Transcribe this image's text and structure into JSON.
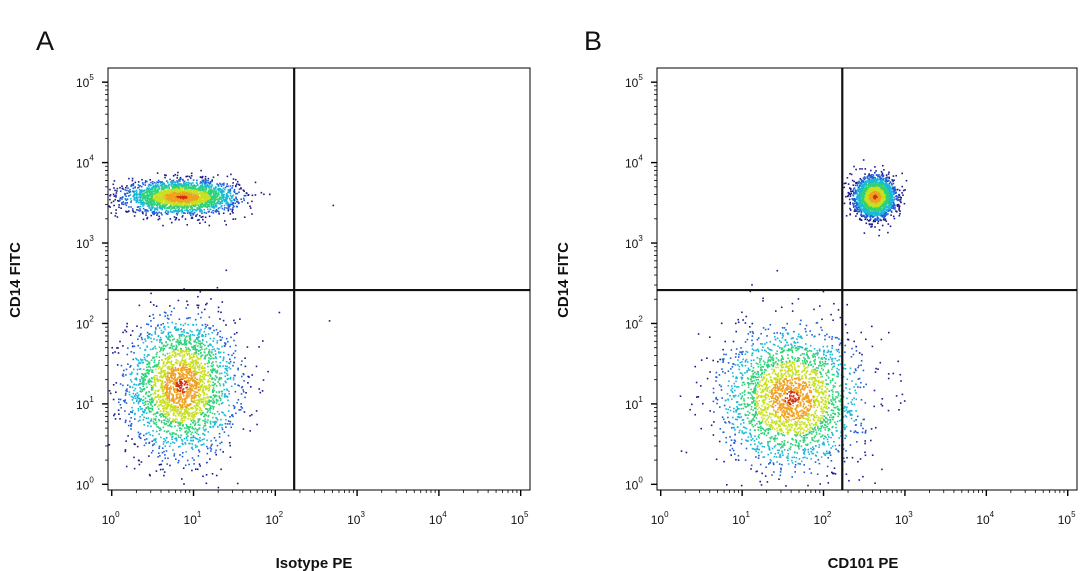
{
  "chart_data": [
    {
      "type": "scatter",
      "panel": "A",
      "xlabel": "Isotype PE",
      "ylabel": "CD14 FITC",
      "x_scale": "log",
      "y_scale": "log",
      "xlim": [
        0.9,
        130000
      ],
      "ylim": [
        0.85,
        150000
      ],
      "x_ticks": [
        {
          "base": "10",
          "exp": "0",
          "value": 1
        },
        {
          "base": "10",
          "exp": "1",
          "value": 10
        },
        {
          "base": "10",
          "exp": "2",
          "value": 100
        },
        {
          "base": "10",
          "exp": "3",
          "value": 1000
        },
        {
          "base": "10",
          "exp": "4",
          "value": 10000
        },
        {
          "base": "10",
          "exp": "5",
          "value": 100000
        }
      ],
      "y_ticks": [
        {
          "base": "10",
          "exp": "0",
          "value": 1
        },
        {
          "base": "10",
          "exp": "1",
          "value": 10
        },
        {
          "base": "10",
          "exp": "2",
          "value": 100
        },
        {
          "base": "10",
          "exp": "3",
          "value": 1000
        },
        {
          "base": "10",
          "exp": "4",
          "value": 10000
        },
        {
          "base": "10",
          "exp": "5",
          "value": 100000
        }
      ],
      "quadrant_gate": {
        "x": 170,
        "y": 260
      },
      "populations": [
        {
          "x_center": 7,
          "y_center": 17,
          "x_spread_decades": 0.33,
          "y_spread_decades": 0.42,
          "density": "high"
        },
        {
          "x_center": 7,
          "y_center": 3800,
          "x_spread_decades": 0.33,
          "y_spread_decades": 0.1,
          "density": "high"
        }
      ],
      "outliers": [
        {
          "x": 500,
          "y": 3000
        },
        {
          "x": 450,
          "y": 110
        }
      ]
    },
    {
      "type": "scatter",
      "panel": "B",
      "xlabel": "CD101 PE",
      "ylabel": "CD14 FITC",
      "x_scale": "log",
      "y_scale": "log",
      "xlim": [
        0.9,
        130000
      ],
      "ylim": [
        0.85,
        150000
      ],
      "x_ticks": [
        {
          "base": "10",
          "exp": "0",
          "value": 1
        },
        {
          "base": "10",
          "exp": "1",
          "value": 10
        },
        {
          "base": "10",
          "exp": "2",
          "value": 100
        },
        {
          "base": "10",
          "exp": "3",
          "value": 1000
        },
        {
          "base": "10",
          "exp": "4",
          "value": 10000
        },
        {
          "base": "10",
          "exp": "5",
          "value": 100000
        }
      ],
      "y_ticks": [
        {
          "base": "10",
          "exp": "0",
          "value": 1
        },
        {
          "base": "10",
          "exp": "1",
          "value": 10
        },
        {
          "base": "10",
          "exp": "2",
          "value": 100
        },
        {
          "base": "10",
          "exp": "3",
          "value": 1000
        },
        {
          "base": "10",
          "exp": "4",
          "value": 10000
        },
        {
          "base": "10",
          "exp": "5",
          "value": 100000
        }
      ],
      "quadrant_gate": {
        "x": 170,
        "y": 260
      },
      "populations": [
        {
          "x_center": 40,
          "y_center": 12,
          "x_spread_decades": 0.42,
          "y_spread_decades": 0.42,
          "density": "high"
        },
        {
          "x_center": 420,
          "y_center": 3800,
          "x_spread_decades": 0.12,
          "y_spread_decades": 0.12,
          "density": "high"
        }
      ],
      "outliers": []
    }
  ],
  "colors": {
    "density_scale": [
      "#1a1a8c",
      "#1f5fd6",
      "#19b8d8",
      "#2fd17a",
      "#c8e020",
      "#f0a020",
      "#d03010"
    ],
    "axes": "#000000",
    "gate_line": "#111111"
  }
}
